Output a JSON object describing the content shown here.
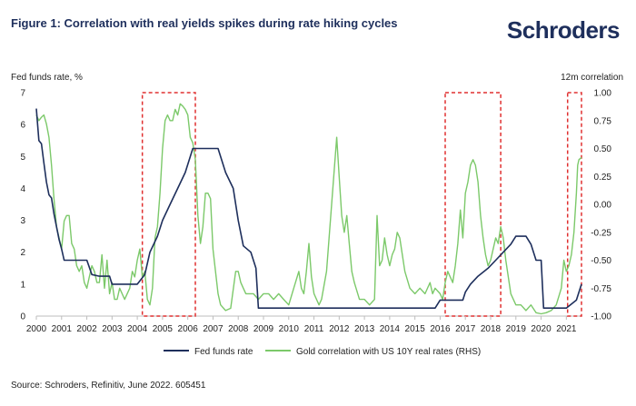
{
  "title": "Figure 1: Correlation with real yields spikes during rate hiking cycles",
  "brand": "Schroders",
  "source": "Source: Schroders, Refinitiv, June 2022. 605451",
  "colors": {
    "title": "#1e2f5c",
    "fed_line": "#1e2f5c",
    "gold_line": "#7cc96a",
    "highlight_box": "#e03030"
  },
  "chart_data": {
    "type": "line",
    "left_axis_label": "Fed funds rate, %",
    "right_axis_label": "12m correlation",
    "x_ticks": [
      "2000",
      "2001",
      "2002",
      "2003",
      "2004",
      "2005",
      "2006",
      "2007",
      "2008",
      "2009",
      "2010",
      "2011",
      "2012",
      "2013",
      "2014",
      "2015",
      "2016",
      "2017",
      "2018",
      "2019",
      "2020",
      "2021"
    ],
    "xlim": [
      2000,
      2021.6
    ],
    "left_ylim": [
      0,
      7
    ],
    "left_ticks": [
      "0",
      "1",
      "2",
      "3",
      "4",
      "5",
      "6",
      "7"
    ],
    "right_ylim": [
      -1.0,
      1.0
    ],
    "right_ticks": [
      "-1.00",
      "-0.75",
      "-0.50",
      "-0.25",
      "0.00",
      "0.25",
      "0.50",
      "0.75",
      "1.00"
    ],
    "legend_position": "bottom",
    "highlight_periods": [
      [
        2004.2,
        2006.3
      ],
      [
        2016.2,
        2018.4
      ],
      [
        2021.05,
        2021.6
      ]
    ],
    "series": [
      {
        "name": "Fed funds rate",
        "axis": "left",
        "points": [
          [
            2000.0,
            6.5
          ],
          [
            2000.1,
            5.5
          ],
          [
            2000.2,
            5.4
          ],
          [
            2000.3,
            4.8
          ],
          [
            2000.4,
            4.2
          ],
          [
            2000.5,
            3.8
          ],
          [
            2000.6,
            3.7
          ],
          [
            2000.7,
            3.2
          ],
          [
            2000.8,
            2.8
          ],
          [
            2000.9,
            2.4
          ],
          [
            2001.0,
            2.1
          ],
          [
            2001.1,
            1.75
          ],
          [
            2001.5,
            1.75
          ],
          [
            2002.0,
            1.75
          ],
          [
            2002.2,
            1.3
          ],
          [
            2002.5,
            1.25
          ],
          [
            2002.9,
            1.25
          ],
          [
            2003.0,
            1.0
          ],
          [
            2004.0,
            1.0
          ],
          [
            2004.3,
            1.3
          ],
          [
            2004.5,
            2.0
          ],
          [
            2004.8,
            2.5
          ],
          [
            2005.0,
            3.0
          ],
          [
            2005.3,
            3.5
          ],
          [
            2005.6,
            4.0
          ],
          [
            2005.9,
            4.5
          ],
          [
            2006.2,
            5.25
          ],
          [
            2006.8,
            5.25
          ],
          [
            2007.2,
            5.25
          ],
          [
            2007.5,
            4.5
          ],
          [
            2007.8,
            4.0
          ],
          [
            2008.0,
            3.0
          ],
          [
            2008.2,
            2.2
          ],
          [
            2008.5,
            2.0
          ],
          [
            2008.7,
            1.5
          ],
          [
            2008.8,
            0.25
          ],
          [
            2009.0,
            0.25
          ],
          [
            2015.8,
            0.25
          ],
          [
            2016.0,
            0.5
          ],
          [
            2016.9,
            0.5
          ],
          [
            2017.0,
            0.75
          ],
          [
            2017.2,
            1.0
          ],
          [
            2017.5,
            1.25
          ],
          [
            2017.9,
            1.5
          ],
          [
            2018.2,
            1.75
          ],
          [
            2018.5,
            2.0
          ],
          [
            2018.8,
            2.25
          ],
          [
            2019.0,
            2.5
          ],
          [
            2019.4,
            2.5
          ],
          [
            2019.6,
            2.25
          ],
          [
            2019.8,
            1.75
          ],
          [
            2020.0,
            1.75
          ],
          [
            2020.1,
            0.25
          ],
          [
            2021.0,
            0.25
          ],
          [
            2021.4,
            0.5
          ],
          [
            2021.6,
            1.0
          ]
        ]
      },
      {
        "name": "Gold correlation with US 10Y real rates (RHS)",
        "axis": "right",
        "points": [
          [
            2000.0,
            0.8
          ],
          [
            2000.1,
            0.75
          ],
          [
            2000.2,
            0.78
          ],
          [
            2000.3,
            0.8
          ],
          [
            2000.4,
            0.72
          ],
          [
            2000.5,
            0.6
          ],
          [
            2000.6,
            0.35
          ],
          [
            2000.7,
            0.05
          ],
          [
            2000.8,
            -0.2
          ],
          [
            2000.9,
            -0.3
          ],
          [
            2001.0,
            -0.4
          ],
          [
            2001.1,
            -0.15
          ],
          [
            2001.2,
            -0.1
          ],
          [
            2001.3,
            -0.1
          ],
          [
            2001.4,
            -0.35
          ],
          [
            2001.5,
            -0.4
          ],
          [
            2001.6,
            -0.55
          ],
          [
            2001.7,
            -0.6
          ],
          [
            2001.8,
            -0.55
          ],
          [
            2001.9,
            -0.7
          ],
          [
            2002.0,
            -0.75
          ],
          [
            2002.1,
            -0.65
          ],
          [
            2002.2,
            -0.55
          ],
          [
            2002.3,
            -0.6
          ],
          [
            2002.4,
            -0.7
          ],
          [
            2002.5,
            -0.7
          ],
          [
            2002.6,
            -0.45
          ],
          [
            2002.7,
            -0.75
          ],
          [
            2002.8,
            -0.5
          ],
          [
            2002.9,
            -0.8
          ],
          [
            2003.0,
            -0.7
          ],
          [
            2003.1,
            -0.85
          ],
          [
            2003.2,
            -0.85
          ],
          [
            2003.3,
            -0.75
          ],
          [
            2003.5,
            -0.85
          ],
          [
            2003.6,
            -0.8
          ],
          [
            2003.7,
            -0.75
          ],
          [
            2003.8,
            -0.6
          ],
          [
            2003.9,
            -0.65
          ],
          [
            2004.0,
            -0.5
          ],
          [
            2004.1,
            -0.4
          ],
          [
            2004.2,
            -0.65
          ],
          [
            2004.3,
            -0.6
          ],
          [
            2004.4,
            -0.85
          ],
          [
            2004.5,
            -0.9
          ],
          [
            2004.6,
            -0.75
          ],
          [
            2004.7,
            -0.3
          ],
          [
            2004.8,
            -0.2
          ],
          [
            2004.9,
            0.1
          ],
          [
            2005.0,
            0.5
          ],
          [
            2005.1,
            0.75
          ],
          [
            2005.2,
            0.8
          ],
          [
            2005.3,
            0.75
          ],
          [
            2005.4,
            0.75
          ],
          [
            2005.5,
            0.85
          ],
          [
            2005.6,
            0.8
          ],
          [
            2005.7,
            0.9
          ],
          [
            2005.8,
            0.88
          ],
          [
            2005.9,
            0.85
          ],
          [
            2006.0,
            0.8
          ],
          [
            2006.1,
            0.6
          ],
          [
            2006.2,
            0.55
          ],
          [
            2006.3,
            0.4
          ],
          [
            2006.4,
            -0.1
          ],
          [
            2006.5,
            -0.35
          ],
          [
            2006.6,
            -0.2
          ],
          [
            2006.7,
            0.1
          ],
          [
            2006.8,
            0.1
          ],
          [
            2006.9,
            0.05
          ],
          [
            2007.0,
            -0.4
          ],
          [
            2007.1,
            -0.6
          ],
          [
            2007.2,
            -0.8
          ],
          [
            2007.3,
            -0.9
          ],
          [
            2007.5,
            -0.95
          ],
          [
            2007.7,
            -0.93
          ],
          [
            2007.9,
            -0.6
          ],
          [
            2008.0,
            -0.6
          ],
          [
            2008.1,
            -0.7
          ],
          [
            2008.2,
            -0.75
          ],
          [
            2008.3,
            -0.8
          ],
          [
            2008.5,
            -0.8
          ],
          [
            2008.6,
            -0.8
          ],
          [
            2008.8,
            -0.85
          ],
          [
            2009.0,
            -0.8
          ],
          [
            2009.2,
            -0.8
          ],
          [
            2009.4,
            -0.85
          ],
          [
            2009.6,
            -0.8
          ],
          [
            2009.8,
            -0.85
          ],
          [
            2010.0,
            -0.9
          ],
          [
            2010.2,
            -0.75
          ],
          [
            2010.4,
            -0.6
          ],
          [
            2010.5,
            -0.75
          ],
          [
            2010.6,
            -0.8
          ],
          [
            2010.7,
            -0.6
          ],
          [
            2010.8,
            -0.35
          ],
          [
            2010.9,
            -0.65
          ],
          [
            2011.0,
            -0.8
          ],
          [
            2011.2,
            -0.9
          ],
          [
            2011.3,
            -0.85
          ],
          [
            2011.5,
            -0.6
          ],
          [
            2011.7,
            0.0
          ],
          [
            2011.8,
            0.3
          ],
          [
            2011.9,
            0.6
          ],
          [
            2012.0,
            0.25
          ],
          [
            2012.1,
            -0.1
          ],
          [
            2012.2,
            -0.25
          ],
          [
            2012.3,
            -0.1
          ],
          [
            2012.4,
            -0.35
          ],
          [
            2012.5,
            -0.6
          ],
          [
            2012.6,
            -0.7
          ],
          [
            2012.8,
            -0.85
          ],
          [
            2013.0,
            -0.85
          ],
          [
            2013.2,
            -0.9
          ],
          [
            2013.4,
            -0.85
          ],
          [
            2013.5,
            -0.1
          ],
          [
            2013.6,
            -0.55
          ],
          [
            2013.7,
            -0.5
          ],
          [
            2013.8,
            -0.3
          ],
          [
            2013.9,
            -0.45
          ],
          [
            2014.0,
            -0.55
          ],
          [
            2014.1,
            -0.45
          ],
          [
            2014.2,
            -0.4
          ],
          [
            2014.3,
            -0.25
          ],
          [
            2014.4,
            -0.3
          ],
          [
            2014.5,
            -0.45
          ],
          [
            2014.6,
            -0.6
          ],
          [
            2014.8,
            -0.75
          ],
          [
            2015.0,
            -0.8
          ],
          [
            2015.2,
            -0.75
          ],
          [
            2015.4,
            -0.8
          ],
          [
            2015.6,
            -0.7
          ],
          [
            2015.7,
            -0.8
          ],
          [
            2015.8,
            -0.75
          ],
          [
            2016.0,
            -0.8
          ],
          [
            2016.1,
            -0.85
          ],
          [
            2016.2,
            -0.7
          ],
          [
            2016.3,
            -0.6
          ],
          [
            2016.5,
            -0.7
          ],
          [
            2016.6,
            -0.55
          ],
          [
            2016.7,
            -0.35
          ],
          [
            2016.8,
            -0.05
          ],
          [
            2016.9,
            -0.3
          ],
          [
            2017.0,
            0.1
          ],
          [
            2017.1,
            0.2
          ],
          [
            2017.2,
            0.35
          ],
          [
            2017.3,
            0.4
          ],
          [
            2017.4,
            0.35
          ],
          [
            2017.5,
            0.2
          ],
          [
            2017.6,
            -0.1
          ],
          [
            2017.7,
            -0.3
          ],
          [
            2017.8,
            -0.45
          ],
          [
            2017.9,
            -0.55
          ],
          [
            2018.0,
            -0.5
          ],
          [
            2018.1,
            -0.4
          ],
          [
            2018.2,
            -0.3
          ],
          [
            2018.3,
            -0.35
          ],
          [
            2018.4,
            -0.2
          ],
          [
            2018.5,
            -0.3
          ],
          [
            2018.6,
            -0.5
          ],
          [
            2018.8,
            -0.8
          ],
          [
            2019.0,
            -0.9
          ],
          [
            2019.2,
            -0.9
          ],
          [
            2019.4,
            -0.95
          ],
          [
            2019.6,
            -0.9
          ],
          [
            2019.8,
            -0.97
          ],
          [
            2020.0,
            -0.98
          ],
          [
            2020.2,
            -0.97
          ],
          [
            2020.4,
            -0.95
          ],
          [
            2020.6,
            -0.9
          ],
          [
            2020.8,
            -0.75
          ],
          [
            2020.9,
            -0.5
          ],
          [
            2021.0,
            -0.6
          ],
          [
            2021.1,
            -0.55
          ],
          [
            2021.2,
            -0.45
          ],
          [
            2021.3,
            -0.25
          ],
          [
            2021.4,
            0.1
          ],
          [
            2021.45,
            0.35
          ],
          [
            2021.5,
            0.4
          ],
          [
            2021.6,
            0.42
          ]
        ]
      }
    ]
  }
}
